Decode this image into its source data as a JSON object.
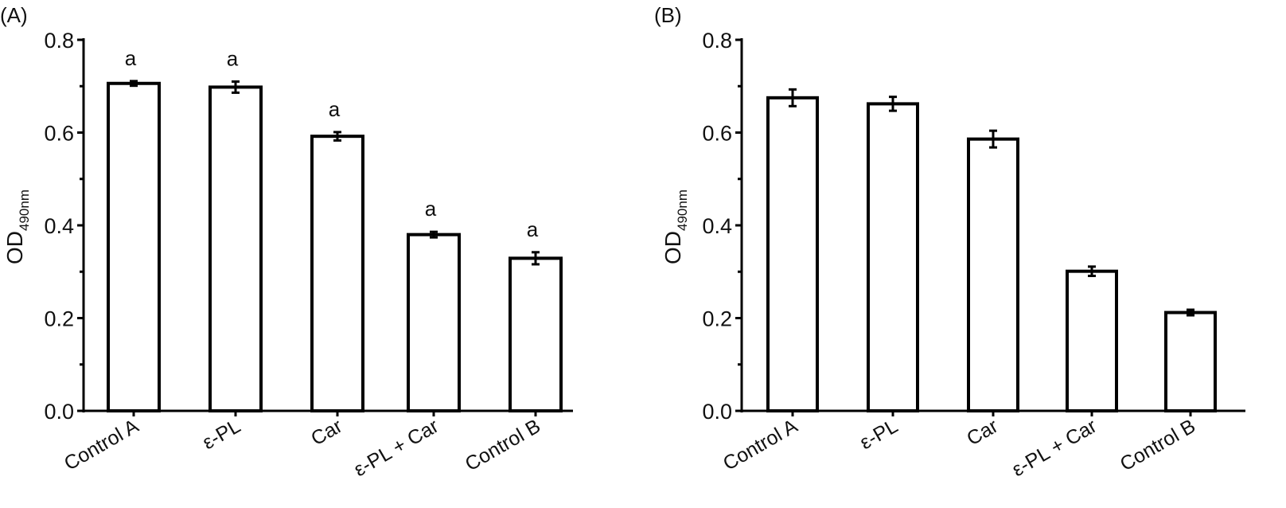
{
  "chart_data": [
    {
      "type": "bar",
      "panel_label": "(A)",
      "categories": [
        "Control A",
        "ε-PL",
        "Car",
        "ε-PL + Car",
        "Control B"
      ],
      "values": [
        0.706,
        0.698,
        0.592,
        0.38,
        0.329
      ],
      "errors": [
        0.005,
        0.012,
        0.009,
        0.006,
        0.013
      ],
      "annotations": [
        "a",
        "a",
        "a",
        "a",
        "a"
      ],
      "ylabel": "OD",
      "ylabel_sub": "490nm",
      "ylim": [
        0,
        0.8
      ],
      "yticks": [
        "0.0",
        "0.2",
        "0.4",
        "0.6",
        "0.8"
      ],
      "bar_fill": "#ffffff",
      "bar_stroke": "#000000"
    },
    {
      "type": "bar",
      "panel_label": "(B)",
      "categories": [
        "Control A",
        "ε-PL",
        "Car",
        "ε-PL + Car",
        "Control B"
      ],
      "values": [
        0.675,
        0.662,
        0.586,
        0.301,
        0.212
      ],
      "errors": [
        0.018,
        0.015,
        0.018,
        0.01,
        0.006
      ],
      "annotations": [],
      "ylabel": "OD",
      "ylabel_sub": "490nm",
      "ylim": [
        0,
        0.8
      ],
      "yticks": [
        "0.0",
        "0.2",
        "0.4",
        "0.6",
        "0.8"
      ],
      "bar_fill": "#ffffff",
      "bar_stroke": "#000000"
    }
  ]
}
